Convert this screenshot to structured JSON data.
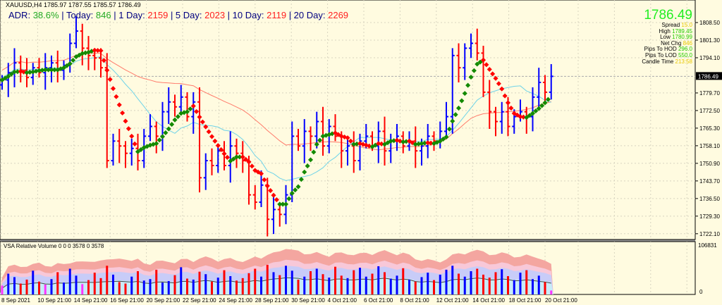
{
  "header": {
    "symbol_line": "XAUUSD,H4  1785.97 1787.55 1785.57 1786.49"
  },
  "adr": {
    "adr_label": "ADR:",
    "adr_value": "38.6%",
    "today_label": "|   Today:",
    "today_value": "846",
    "d1_label": "|   1 Day:",
    "d1_value": "2159",
    "d5_label": "|   5 Day:",
    "d5_value": "2023",
    "d10_label": "|   10 Day:",
    "d10_value": "2119",
    "d20_label": "|       20 Day:",
    "d20_value": "2269"
  },
  "info": {
    "price": "1786.49",
    "rows": [
      {
        "label": "Spread",
        "value": "15.0",
        "color": "#e8c800"
      },
      {
        "label": "High",
        "value": "1789.45",
        "color": "#22cc00"
      },
      {
        "label": "Low",
        "value": "1780.99",
        "color": "#22cc00"
      },
      {
        "label": "Net Chg",
        "value": "846",
        "color": "#e8c800"
      },
      {
        "label": "Pips To HOD",
        "value": "296.0",
        "color": "#22cc00"
      },
      {
        "label": "Pips To LOD",
        "value": "550.0",
        "color": "#22cc00"
      },
      {
        "label": "Candle Time",
        "value": "213:58",
        "color": "#e8c800"
      }
    ]
  },
  "volume_pane": {
    "title": "VSA Relative Volume 0 0 0 3578 0 3578",
    "max_label": "106831",
    "min_label": "0"
  },
  "chart_data": {
    "type": "ohlc",
    "symbol": "XAUUSD",
    "timeframe": "H4",
    "ylim": [
      1718,
      1813
    ],
    "y_ticks": [
      "1808.50",
      "1801.30",
      "1794.10",
      "1779.70",
      "1772.50",
      "1765.30",
      "1758.10",
      "1750.90",
      "1743.70",
      "1736.50",
      "1729.30",
      "1722.10"
    ],
    "current_price": "1786.49",
    "x_ticks": [
      "8 Sep 2021",
      "10 Sep 21:00",
      "14 Sep 21:00",
      "16 Sep 21:00",
      "20 Sep 21:00",
      "22 Sep 21:00",
      "24 Sep 21:00",
      "28 Sep 21:00",
      "30 Sep 21:00",
      "4 Oct 21:00",
      "6 Oct 21:00",
      "8 Oct 21:00",
      "12 Oct 21:00",
      "14 Oct 21:00",
      "18 Oct 21:00",
      "20 Oct 21:00"
    ],
    "closes": [
      1785,
      1788,
      1792,
      1789,
      1786,
      1790,
      1788,
      1790,
      1792,
      1789,
      1791,
      1800,
      1805,
      1798,
      1795,
      1794,
      1790,
      1752,
      1760,
      1758,
      1755,
      1757,
      1752,
      1762,
      1766,
      1762,
      1772,
      1776,
      1774,
      1778,
      1770,
      1776,
      1745,
      1752,
      1750,
      1756,
      1750,
      1758,
      1755,
      1752,
      1738,
      1735,
      1742,
      1728,
      1732,
      1730,
      1738,
      1762,
      1758,
      1764,
      1762,
      1768,
      1758,
      1766,
      1762,
      1756,
      1758,
      1752,
      1760,
      1762,
      1758,
      1764,
      1756,
      1760,
      1762,
      1758,
      1760,
      1756,
      1758,
      1762,
      1760,
      1764,
      1770,
      1795,
      1790,
      1798,
      1800,
      1796,
      1780,
      1772,
      1768,
      1772,
      1766,
      1770,
      1772,
      1770,
      1778,
      1784,
      1780,
      1786.49
    ],
    "volumes": [
      18000,
      42000,
      35000,
      22000,
      30000,
      48000,
      26000,
      20000,
      31000,
      45000,
      24000,
      52000,
      38000,
      21000,
      29000,
      44000,
      33000,
      58000,
      40000,
      25000,
      22000,
      36000,
      47000,
      28000,
      31000,
      50000,
      24000,
      27000,
      39000,
      55000,
      32000,
      30000,
      46000,
      41000,
      26000,
      34000,
      49000,
      37000,
      28000,
      33000,
      43000,
      52000,
      36000,
      60000,
      45000,
      39000,
      58000,
      48000,
      30000,
      36000,
      47000,
      52000,
      41000,
      34000,
      56000,
      38000,
      33000,
      49000,
      54000,
      36000,
      42000,
      57000,
      45000,
      32000,
      38000,
      53000,
      30000,
      26000,
      35000,
      44000,
      29000,
      40000,
      50000,
      58000,
      42000,
      36000,
      47000,
      52000,
      40000,
      34000,
      45000,
      51000,
      37000,
      29000,
      44000,
      49000,
      31000,
      38000,
      25000,
      8000
    ],
    "colors": {
      "up": "#0000ff",
      "down": "#ff0000",
      "trend_up": "#138a00",
      "trend_down": "#ff0000",
      "slow_ma": "#ff7b6b",
      "fast_ma": "#6fd3e8"
    }
  }
}
